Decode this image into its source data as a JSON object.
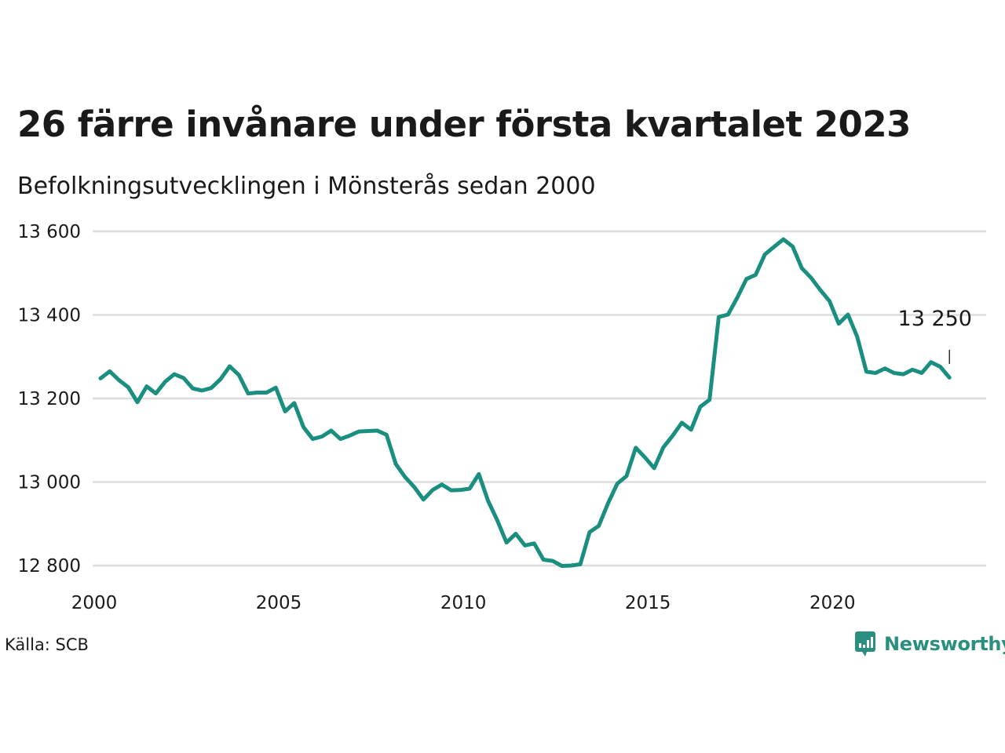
{
  "title": "26 färre invånare under första kvartalet 2023",
  "subtitle": "Befolkningsutvecklingen i Mönsterås sedan 2000",
  "source": "Källa: SCB",
  "brand": "Newsworthy",
  "colors": {
    "line": "#1a8f80",
    "grid": "#dddddd",
    "text": "#1a1a1a",
    "brand": "#2b8f80"
  },
  "chart_data": {
    "type": "line",
    "title": "26 färre invånare under första kvartalet 2023",
    "subtitle": "Befolkningsutvecklingen i Mönsterås sedan 2000",
    "xlabel": "",
    "ylabel": "",
    "xlim": [
      2000,
      2023.25
    ],
    "ylim": [
      12800,
      13600
    ],
    "grid": true,
    "x_ticks": [
      2000,
      2005,
      2010,
      2015,
      2020
    ],
    "x_tick_labels": [
      "2000",
      "2005",
      "2010",
      "2015",
      "2020"
    ],
    "y_ticks": [
      12800,
      13000,
      13200,
      13400,
      13600
    ],
    "y_tick_labels": [
      "12 800",
      "13 000",
      "13 200",
      "13 400",
      "13 600"
    ],
    "end_label": "13 250",
    "x_start": 2000.0,
    "x_step": 0.25,
    "values": [
      13248,
      13265,
      13244,
      13227,
      13191,
      13229,
      13212,
      13240,
      13258,
      13249,
      13224,
      13219,
      13225,
      13246,
      13277,
      13256,
      13212,
      13214,
      13214,
      13226,
      13169,
      13189,
      13131,
      13103,
      13109,
      13123,
      13103,
      13111,
      13121,
      13122,
      13123,
      13113,
      13043,
      13012,
      12988,
      12958,
      12981,
      12994,
      12980,
      12981,
      12984,
      13019,
      12955,
      12908,
      12855,
      12876,
      12848,
      12853,
      12814,
      12811,
      12799,
      12800,
      12803,
      12880,
      12895,
      12949,
      12996,
      13014,
      13082,
      13059,
      13033,
      13083,
      13111,
      13142,
      13125,
      13180,
      13197,
      13395,
      13401,
      13441,
      13486,
      13496,
      13545,
      13563,
      13581,
      13564,
      13512,
      13489,
      13460,
      13433,
      13379,
      13401,
      13348,
      13264,
      13261,
      13272,
      13261,
      13258,
      13269,
      13261,
      13287,
      13276,
      13250
    ]
  }
}
